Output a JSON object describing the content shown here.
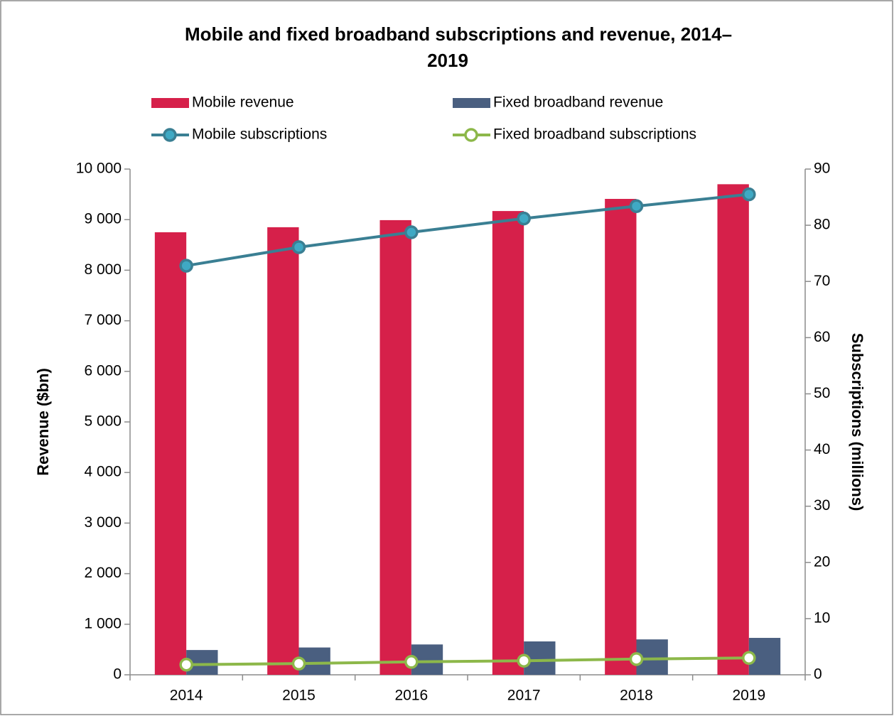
{
  "chart_data": {
    "type": "bar",
    "title": [
      "Mobile and fixed broadband subscriptions and revenue, 2014–",
      "2019"
    ],
    "categories": [
      "2014",
      "2015",
      "2016",
      "2017",
      "2018",
      "2019"
    ],
    "ylabel": "Revenue ($bn)",
    "y2label": "Subscriptions (millions)",
    "ylim": [
      0,
      10000
    ],
    "yticks": [
      0,
      {
        "value": 1000,
        "label": "1 000"
      },
      {
        "value": 2000,
        "label": "2 000"
      },
      {
        "value": 3000,
        "label": "3 000"
      },
      {
        "value": 4000,
        "label": "4 000"
      },
      {
        "value": 5000,
        "label": "5 000"
      },
      {
        "value": 6000,
        "label": "6 000"
      },
      {
        "value": 7000,
        "label": "7 000"
      },
      {
        "value": 8000,
        "label": "8 000"
      },
      {
        "value": 9000,
        "label": "9 000"
      },
      {
        "value": 10000,
        "label": "10 000"
      }
    ],
    "y2lim": [
      0,
      90
    ],
    "y2ticks": [
      0,
      10,
      20,
      30,
      40,
      50,
      60,
      70,
      80,
      90
    ],
    "grid": false,
    "series": [
      {
        "name": "Mobile revenue",
        "type": "bar",
        "color": "#d6204a",
        "values": [
          8750,
          8850,
          8990,
          9170,
          9410,
          9700
        ]
      },
      {
        "name": "Fixed broadband revenue",
        "type": "bar",
        "color": "#4a5f80",
        "values": [
          490,
          540,
          600,
          660,
          700,
          730
        ]
      },
      {
        "name": "Mobile subscriptions",
        "type": "line",
        "axis": "y2",
        "color": "#3a7f93",
        "marker_fill": "#3fa9c4",
        "values": [
          72.8,
          76.1,
          78.75,
          81.2,
          83.4,
          85.5
        ]
      },
      {
        "name": "Fixed broadband subscriptions",
        "type": "line",
        "axis": "y2",
        "color": "#8db84a",
        "marker_fill": "#ffffff",
        "values": [
          1.8,
          2.0,
          2.3,
          2.5,
          2.8,
          3.0
        ]
      }
    ]
  }
}
